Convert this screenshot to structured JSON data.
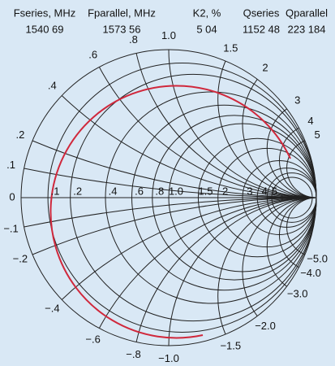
{
  "header": {
    "columns": [
      {
        "title": "Fseries, MHz",
        "value": "1540 69"
      },
      {
        "title": "Fparallel, MHz",
        "value": "1573 56"
      },
      {
        "title": "K2, %",
        "value": "5 04"
      },
      {
        "title": "Qseries",
        "value": "1152 48"
      },
      {
        "title": "Qparallel",
        "value": "223 184"
      }
    ]
  },
  "chart": {
    "zero_label": "0",
    "resistance": [
      {
        "value": 0.1,
        "label": ".1"
      },
      {
        "value": 0.2,
        "label": ".2"
      },
      {
        "value": 0.4,
        "label": ".4"
      },
      {
        "value": 0.6,
        "label": ".6"
      },
      {
        "value": 0.8,
        "label": ".8"
      },
      {
        "value": 1,
        "label": "1.0"
      },
      {
        "value": 1.5,
        "label": "1.5"
      },
      {
        "value": 2,
        "label": "2"
      },
      {
        "value": 3,
        "label": "3"
      },
      {
        "value": 4,
        "label": "4"
      },
      {
        "value": 5,
        "label": "5"
      }
    ],
    "reactance_positive": [
      {
        "value": 0.1,
        "label": ".1"
      },
      {
        "value": 0.2,
        "label": ".2"
      },
      {
        "value": 0.4,
        "label": ".4"
      },
      {
        "value": 0.6,
        "label": ".6"
      },
      {
        "value": 0.8,
        "label": ".8"
      },
      {
        "value": 1,
        "label": "1.0"
      },
      {
        "value": 1.5,
        "label": "1.5"
      },
      {
        "value": 2,
        "label": "2"
      },
      {
        "value": 3,
        "label": "3"
      },
      {
        "value": 4,
        "label": "4"
      },
      {
        "value": 5,
        "label": "5"
      }
    ],
    "reactance_negative": [
      {
        "value": -0.1,
        "label": "−.1"
      },
      {
        "value": -0.2,
        "label": "−.2"
      },
      {
        "value": -0.4,
        "label": "−.4"
      },
      {
        "value": -0.6,
        "label": "−.6"
      },
      {
        "value": -0.8,
        "label": "−.8"
      },
      {
        "value": -1,
        "label": "−1.0"
      },
      {
        "value": -1.5,
        "label": "−1.5"
      },
      {
        "value": -2,
        "label": "−2.0"
      },
      {
        "value": -3,
        "label": "−3.0"
      },
      {
        "value": -4,
        "label": "−4.0"
      },
      {
        "value": -5,
        "label": "−5.0"
      }
    ]
  }
}
